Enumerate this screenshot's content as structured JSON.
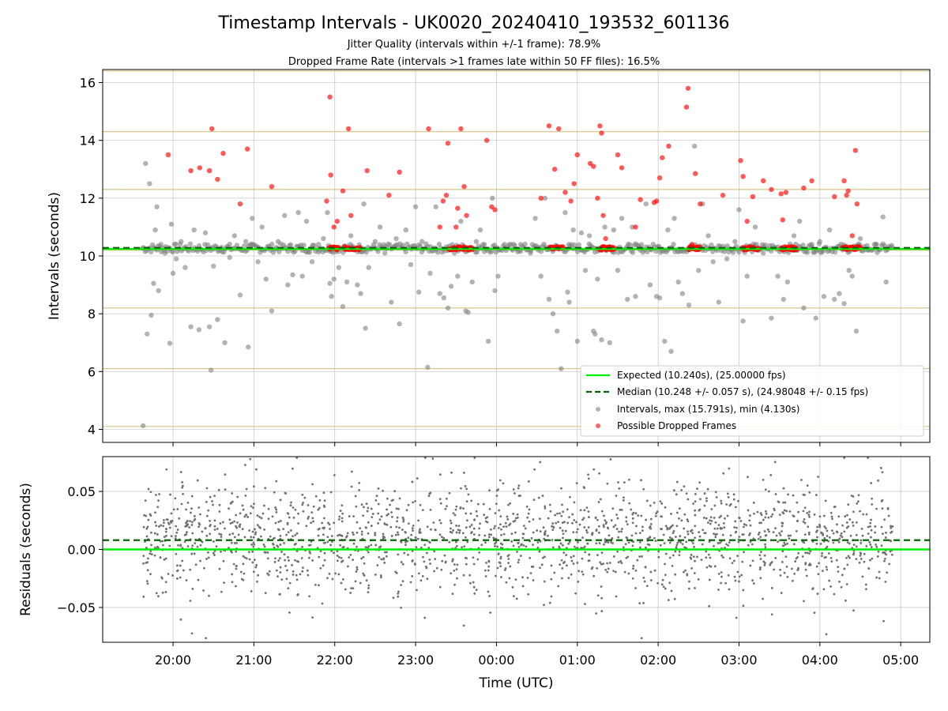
{
  "chart_data": [
    {
      "type": "scatter",
      "title": "Timestamp Intervals - UK0020_20240410_193532_601136",
      "subtitle_lines": [
        "Jitter Quality (intervals within +/-1 frame): 78.9%",
        "Dropped Frame Rate (intervals >1 frames late within 50 FF files): 16.5%"
      ],
      "xlabel": "",
      "ylabel": "Intervals (seconds)",
      "ylim": [
        3.55,
        16.45
      ],
      "xlim_hours": [
        19.13,
        29.36
      ],
      "yticks": [
        4,
        6,
        8,
        10,
        12,
        14,
        16
      ],
      "grid": true,
      "legend_position": "lower-right",
      "series": [
        {
          "name": "Expected (10.240s), (25.00000 fps)",
          "kind": "hline",
          "y": 10.24,
          "color": "#00ee00",
          "style": "solid"
        },
        {
          "name": "Median (10.248 +/- 0.057 s), (24.98048 +/- 0.15 fps)",
          "kind": "hline",
          "y": 10.248,
          "color": "#006400",
          "style": "dashed"
        },
        {
          "name": "Intervals, max (15.791s), min (4.130s)",
          "kind": "scatter",
          "color": "#808080"
        },
        {
          "name": "Possible Dropped Frames",
          "kind": "scatter",
          "color": "#ff0000"
        }
      ],
      "frame_lines": {
        "color": "#d4bf80",
        "values": [
          4.1,
          6.1,
          8.2,
          10.2,
          12.3,
          14.3,
          16.4
        ]
      },
      "gray_points": [
        [
          19.63,
          4.13
        ],
        [
          19.66,
          13.2
        ],
        [
          19.68,
          7.3
        ],
        [
          19.71,
          12.5
        ],
        [
          19.73,
          7.95
        ],
        [
          19.76,
          9.05
        ],
        [
          19.78,
          10.9
        ],
        [
          19.8,
          11.7
        ],
        [
          19.82,
          8.8
        ],
        [
          19.85,
          10.4
        ],
        [
          19.9,
          10.1
        ],
        [
          19.96,
          6.98
        ],
        [
          19.98,
          11.1
        ],
        [
          20.0,
          9.4
        ],
        [
          20.04,
          9.9
        ],
        [
          20.1,
          10.5
        ],
        [
          20.15,
          9.6
        ],
        [
          20.22,
          7.55
        ],
        [
          20.26,
          10.9
        ],
        [
          20.32,
          7.45
        ],
        [
          20.4,
          10.8
        ],
        [
          20.45,
          7.55
        ],
        [
          20.47,
          6.05
        ],
        [
          20.5,
          9.65
        ],
        [
          20.55,
          7.8
        ],
        [
          20.6,
          10.3
        ],
        [
          20.64,
          7.0
        ],
        [
          20.7,
          9.95
        ],
        [
          20.76,
          10.7
        ],
        [
          20.83,
          8.65
        ],
        [
          20.9,
          10.5
        ],
        [
          20.93,
          6.85
        ],
        [
          20.98,
          11.3
        ],
        [
          21.05,
          9.8
        ],
        [
          21.1,
          11.0
        ],
        [
          21.15,
          9.2
        ],
        [
          21.22,
          8.1
        ],
        [
          21.3,
          10.5
        ],
        [
          21.38,
          11.4
        ],
        [
          21.42,
          9.0
        ],
        [
          21.48,
          9.35
        ],
        [
          21.55,
          11.5
        ],
        [
          21.6,
          9.3
        ],
        [
          21.65,
          11.2
        ],
        [
          21.72,
          9.8
        ],
        [
          21.8,
          10.4
        ],
        [
          21.86,
          10.6
        ],
        [
          21.91,
          11.5
        ],
        [
          21.94,
          9.05
        ],
        [
          21.96,
          8.6
        ],
        [
          21.99,
          9.2
        ],
        [
          22.05,
          9.6
        ],
        [
          22.1,
          8.25
        ],
        [
          22.15,
          9.1
        ],
        [
          22.2,
          10.7
        ],
        [
          22.28,
          9.0
        ],
        [
          22.32,
          8.7
        ],
        [
          22.36,
          11.8
        ],
        [
          22.38,
          7.5
        ],
        [
          22.42,
          9.6
        ],
        [
          22.5,
          10.5
        ],
        [
          22.56,
          11.0
        ],
        [
          22.62,
          10.1
        ],
        [
          22.7,
          8.4
        ],
        [
          22.76,
          10.6
        ],
        [
          22.8,
          7.65
        ],
        [
          22.88,
          10.9
        ],
        [
          22.94,
          9.7
        ],
        [
          23.0,
          11.7
        ],
        [
          23.04,
          8.75
        ],
        [
          23.08,
          10.5
        ],
        [
          23.15,
          6.15
        ],
        [
          23.18,
          9.4
        ],
        [
          23.25,
          11.7
        ],
        [
          23.3,
          8.7
        ],
        [
          23.35,
          8.55
        ],
        [
          23.4,
          8.2
        ],
        [
          23.44,
          8.95
        ],
        [
          23.48,
          10.1
        ],
        [
          23.52,
          9.3
        ],
        [
          23.56,
          11.2
        ],
        [
          23.62,
          8.1
        ],
        [
          23.65,
          8.05
        ],
        [
          23.7,
          9.1
        ],
        [
          23.75,
          10.5
        ],
        [
          23.8,
          10.9
        ],
        [
          23.85,
          10.4
        ],
        [
          23.9,
          7.05
        ],
        [
          23.95,
          12.0
        ],
        [
          23.98,
          8.8
        ],
        [
          24.02,
          9.3
        ],
        [
          24.1,
          10.4
        ],
        [
          24.2,
          10.2
        ],
        [
          24.3,
          10.4
        ],
        [
          24.42,
          10.1
        ],
        [
          24.48,
          11.3
        ],
        [
          24.55,
          9.3
        ],
        [
          24.6,
          12.0
        ],
        [
          24.65,
          8.5
        ],
        [
          24.7,
          8.0
        ],
        [
          24.75,
          7.4
        ],
        [
          24.8,
          6.1
        ],
        [
          24.85,
          11.5
        ],
        [
          24.88,
          8.75
        ],
        [
          24.9,
          8.4
        ],
        [
          24.95,
          10.9
        ],
        [
          25.0,
          7.05
        ],
        [
          25.05,
          10.8
        ],
        [
          25.1,
          9.5
        ],
        [
          25.15,
          10.7
        ],
        [
          25.2,
          7.4
        ],
        [
          25.22,
          7.3
        ],
        [
          25.25,
          9.2
        ],
        [
          25.3,
          7.1
        ],
        [
          25.34,
          11.0
        ],
        [
          25.4,
          7.0
        ],
        [
          25.45,
          10.9
        ],
        [
          25.5,
          9.5
        ],
        [
          25.55,
          11.3
        ],
        [
          25.62,
          8.5
        ],
        [
          25.68,
          11.0
        ],
        [
          25.72,
          8.6
        ],
        [
          25.78,
          10.2
        ],
        [
          25.85,
          11.8
        ],
        [
          25.9,
          9.0
        ],
        [
          25.98,
          8.6
        ],
        [
          26.02,
          8.55
        ],
        [
          26.08,
          7.05
        ],
        [
          26.12,
          10.9
        ],
        [
          26.16,
          6.7
        ],
        [
          26.2,
          11.3
        ],
        [
          26.25,
          9.1
        ],
        [
          26.3,
          8.7
        ],
        [
          26.38,
          8.3
        ],
        [
          26.45,
          13.8
        ],
        [
          26.5,
          9.5
        ],
        [
          26.55,
          11.8
        ],
        [
          26.62,
          10.7
        ],
        [
          26.68,
          9.8
        ],
        [
          26.75,
          8.4
        ],
        [
          26.85,
          9.9
        ],
        [
          26.95,
          10.5
        ],
        [
          27.0,
          11.6
        ],
        [
          27.05,
          7.75
        ],
        [
          27.1,
          9.3
        ],
        [
          27.2,
          11.0
        ],
        [
          27.3,
          10.1
        ],
        [
          27.4,
          7.85
        ],
        [
          27.48,
          9.3
        ],
        [
          27.55,
          8.5
        ],
        [
          27.6,
          9.1
        ],
        [
          27.68,
          10.7
        ],
        [
          27.75,
          11.2
        ],
        [
          27.8,
          8.2
        ],
        [
          27.9,
          10.4
        ],
        [
          27.95,
          7.85
        ],
        [
          28.0,
          10.5
        ],
        [
          28.05,
          8.6
        ],
        [
          28.12,
          10.9
        ],
        [
          28.18,
          8.5
        ],
        [
          28.24,
          8.7
        ],
        [
          28.3,
          8.35
        ],
        [
          28.36,
          9.5
        ],
        [
          28.4,
          9.3
        ],
        [
          28.45,
          7.4
        ],
        [
          28.5,
          10.6
        ],
        [
          28.6,
          10.2
        ],
        [
          28.7,
          10.4
        ],
        [
          28.78,
          11.35
        ],
        [
          28.82,
          9.1
        ],
        [
          28.88,
          10.3
        ]
      ],
      "red_points": [
        [
          19.94,
          13.5
        ],
        [
          20.22,
          12.95
        ],
        [
          20.33,
          13.05
        ],
        [
          20.45,
          12.95
        ],
        [
          20.48,
          14.4
        ],
        [
          20.55,
          12.65
        ],
        [
          20.62,
          13.55
        ],
        [
          20.83,
          11.8
        ],
        [
          20.92,
          13.7
        ],
        [
          21.22,
          12.4
        ],
        [
          21.9,
          11.9
        ],
        [
          21.94,
          15.5
        ],
        [
          21.95,
          12.8
        ],
        [
          21.99,
          11.0
        ],
        [
          22.03,
          11.2
        ],
        [
          22.1,
          12.25
        ],
        [
          22.17,
          14.4
        ],
        [
          22.2,
          11.4
        ],
        [
          22.4,
          12.95
        ],
        [
          22.67,
          12.1
        ],
        [
          22.8,
          12.9
        ],
        [
          23.16,
          14.4
        ],
        [
          23.3,
          11.0
        ],
        [
          23.34,
          11.9
        ],
        [
          23.38,
          12.1
        ],
        [
          23.4,
          13.9
        ],
        [
          23.5,
          11.0
        ],
        [
          23.52,
          11.65
        ],
        [
          23.56,
          14.4
        ],
        [
          23.6,
          12.4
        ],
        [
          23.63,
          11.4
        ],
        [
          23.88,
          14.0
        ],
        [
          23.94,
          11.7
        ],
        [
          23.98,
          11.6
        ],
        [
          24.55,
          12.0
        ],
        [
          24.65,
          14.5
        ],
        [
          24.72,
          13.0
        ],
        [
          24.77,
          14.4
        ],
        [
          24.85,
          12.2
        ],
        [
          24.92,
          11.9
        ],
        [
          24.96,
          12.5
        ],
        [
          25.0,
          13.5
        ],
        [
          25.16,
          13.2
        ],
        [
          25.2,
          13.1
        ],
        [
          25.25,
          12.0
        ],
        [
          25.28,
          14.5
        ],
        [
          25.3,
          14.25
        ],
        [
          25.32,
          11.4
        ],
        [
          25.35,
          10.6
        ],
        [
          25.5,
          13.5
        ],
        [
          25.55,
          13.05
        ],
        [
          25.72,
          11.0
        ],
        [
          25.78,
          11.95
        ],
        [
          25.95,
          11.85
        ],
        [
          25.98,
          11.9
        ],
        [
          26.02,
          12.7
        ],
        [
          26.05,
          13.4
        ],
        [
          26.13,
          13.8
        ],
        [
          26.35,
          15.15
        ],
        [
          26.37,
          15.8
        ],
        [
          26.42,
          10.4
        ],
        [
          26.46,
          12.85
        ],
        [
          26.52,
          11.8
        ],
        [
          26.8,
          12.1
        ],
        [
          27.02,
          13.3
        ],
        [
          27.05,
          12.75
        ],
        [
          27.1,
          11.2
        ],
        [
          27.17,
          12.05
        ],
        [
          27.3,
          12.6
        ],
        [
          27.4,
          12.3
        ],
        [
          27.52,
          12.15
        ],
        [
          27.54,
          11.25
        ],
        [
          27.58,
          12.2
        ],
        [
          27.8,
          12.35
        ],
        [
          27.9,
          12.6
        ],
        [
          28.18,
          12.05
        ],
        [
          28.3,
          12.6
        ],
        [
          28.33,
          12.1
        ],
        [
          28.35,
          12.25
        ],
        [
          28.4,
          10.7
        ],
        [
          28.44,
          13.65
        ],
        [
          28.46,
          11.8
        ]
      ],
      "red_clusters": [
        [
          21.93,
          22.05
        ],
        [
          22.12,
          22.32
        ],
        [
          23.42,
          23.7
        ],
        [
          24.66,
          24.82
        ],
        [
          25.28,
          25.45
        ],
        [
          26.38,
          26.52
        ],
        [
          27.05,
          27.25
        ],
        [
          27.52,
          27.72
        ],
        [
          28.28,
          28.5
        ]
      ]
    },
    {
      "type": "scatter",
      "title": "",
      "xlabel": "Time (UTC)",
      "ylabel": "Residuals (seconds)",
      "ylim": [
        -0.08,
        0.08
      ],
      "xlim_hours": [
        19.13,
        29.36
      ],
      "yticks": [
        -0.05,
        0.0,
        0.05
      ],
      "ytick_labels": [
        "−0.05",
        "0.00",
        "0.05"
      ],
      "xticks_hours": [
        20,
        21,
        22,
        23,
        24,
        25,
        26,
        27,
        28,
        29
      ],
      "xtick_labels": [
        "20:00",
        "21:00",
        "22:00",
        "23:00",
        "00:00",
        "01:00",
        "02:00",
        "03:00",
        "04:00",
        "05:00"
      ],
      "grid": true,
      "expected_residual": 0.0,
      "median_residual": 0.008,
      "point_color": "#707070",
      "point_count": 1900,
      "residual_spread": 0.025
    }
  ],
  "colors": {
    "expected": "#00ee00",
    "median": "#006400",
    "gray_point": "#808080",
    "red_point": "#ff0000",
    "frame_line": "#d4bf80",
    "grid": "#b0b0b0"
  }
}
